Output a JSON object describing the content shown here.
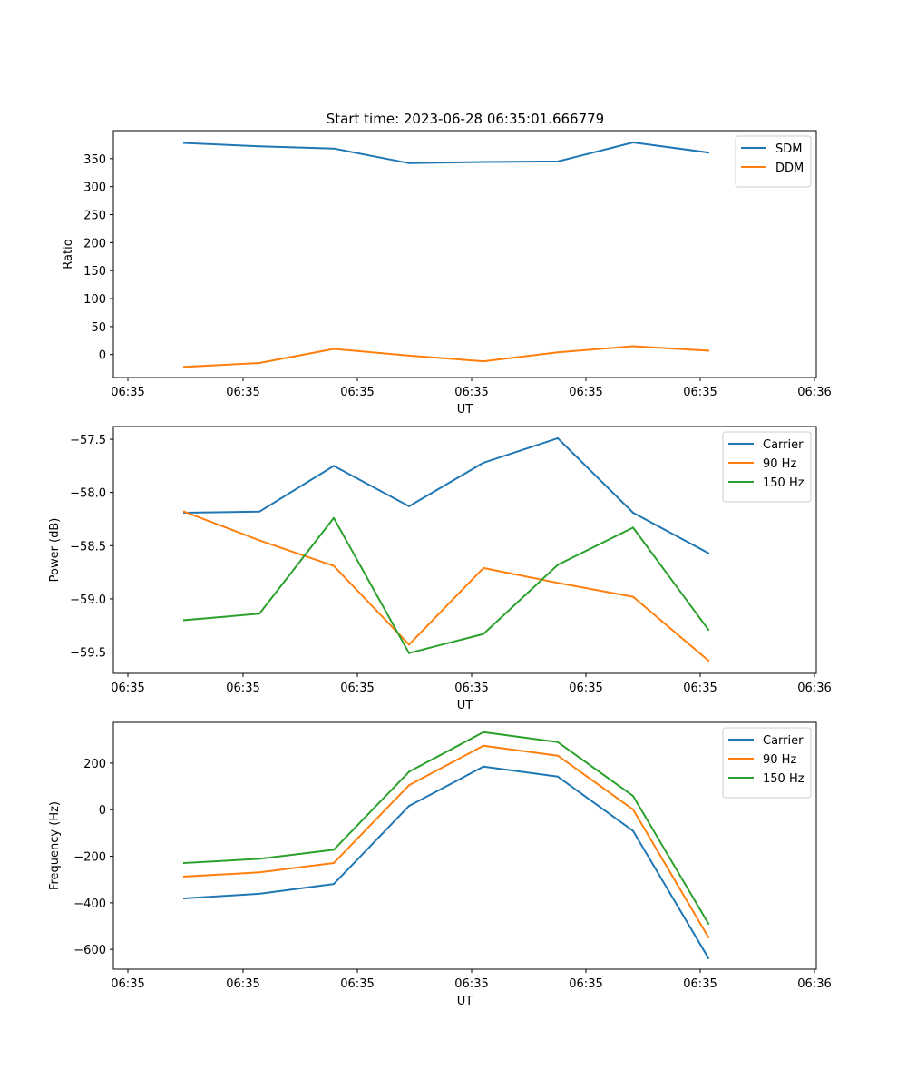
{
  "figure_title": "Start time: 2023-06-28 06:35:01.666779",
  "chart_data": [
    {
      "type": "line",
      "title": "Start time: 2023-06-28 06:35:01.666779",
      "xlabel": "UT",
      "ylabel": "Ratio",
      "xtick_labels": [
        "06:35",
        "06:35",
        "06:35",
        "06:35",
        "06:35",
        "06:35",
        "06:36"
      ],
      "x": [
        1,
        2,
        3,
        4,
        5,
        6,
        7,
        8
      ],
      "ylim": [
        -41,
        400
      ],
      "yticks": [
        0,
        50,
        100,
        150,
        200,
        250,
        300,
        350
      ],
      "legend_position": "top-right",
      "grid": false,
      "series": [
        {
          "name": "SDM",
          "color": "#1f77b4",
          "values": [
            378,
            372,
            368,
            342,
            344,
            345,
            379,
            361
          ]
        },
        {
          "name": "DDM",
          "color": "#ff7f0e",
          "values": [
            -22,
            -15,
            10,
            -2,
            -12,
            4,
            15,
            7
          ]
        }
      ]
    },
    {
      "type": "line",
      "title": "",
      "xlabel": "UT",
      "ylabel": "Power (dB)",
      "xtick_labels": [
        "06:35",
        "06:35",
        "06:35",
        "06:35",
        "06:35",
        "06:35",
        "06:36"
      ],
      "x": [
        1,
        2,
        3,
        4,
        5,
        6,
        7,
        8
      ],
      "ylim": [
        -59.7,
        -57.38
      ],
      "yticks": [
        -59.5,
        -59.0,
        -58.5,
        -58.0,
        -57.5
      ],
      "ytick_labels": [
        "−59.5",
        "−59.0",
        "−58.5",
        "−58.0",
        "−57.5"
      ],
      "legend_position": "top-right",
      "grid": false,
      "series": [
        {
          "name": "Carrier",
          "color": "#1f77b4",
          "values": [
            -58.19,
            -58.18,
            -57.75,
            -58.13,
            -57.72,
            -57.49,
            -58.19,
            -58.57
          ]
        },
        {
          "name": "90 Hz",
          "color": "#ff7f0e",
          "values": [
            -58.18,
            -58.45,
            -58.69,
            -59.43,
            -58.71,
            -58.85,
            -58.98,
            -59.58
          ]
        },
        {
          "name": "150 Hz",
          "color": "#2ca02c",
          "values": [
            -59.2,
            -59.14,
            -58.24,
            -59.51,
            -59.33,
            -58.68,
            -58.33,
            -59.29
          ]
        }
      ]
    },
    {
      "type": "line",
      "title": "",
      "xlabel": "UT",
      "ylabel": "Frequency (Hz)",
      "xtick_labels": [
        "06:35",
        "06:35",
        "06:35",
        "06:35",
        "06:35",
        "06:35",
        "06:36"
      ],
      "x": [
        1,
        2,
        3,
        4,
        5,
        6,
        7,
        8
      ],
      "ylim": [
        -685,
        375
      ],
      "yticks": [
        -600,
        -400,
        -200,
        0,
        200
      ],
      "ytick_labels": [
        "−600",
        "−400",
        "−200",
        "0",
        "200"
      ],
      "legend_position": "top-right",
      "grid": false,
      "series": [
        {
          "name": "Carrier",
          "color": "#1f77b4",
          "values": [
            -381,
            -361,
            -319,
            16,
            185,
            142,
            -91,
            -637
          ]
        },
        {
          "name": "90 Hz",
          "color": "#ff7f0e",
          "values": [
            -287,
            -269,
            -229,
            105,
            275,
            232,
            1,
            -548
          ]
        },
        {
          "name": "150 Hz",
          "color": "#2ca02c",
          "values": [
            -229,
            -211,
            -172,
            163,
            333,
            290,
            59,
            -489
          ]
        }
      ]
    }
  ]
}
